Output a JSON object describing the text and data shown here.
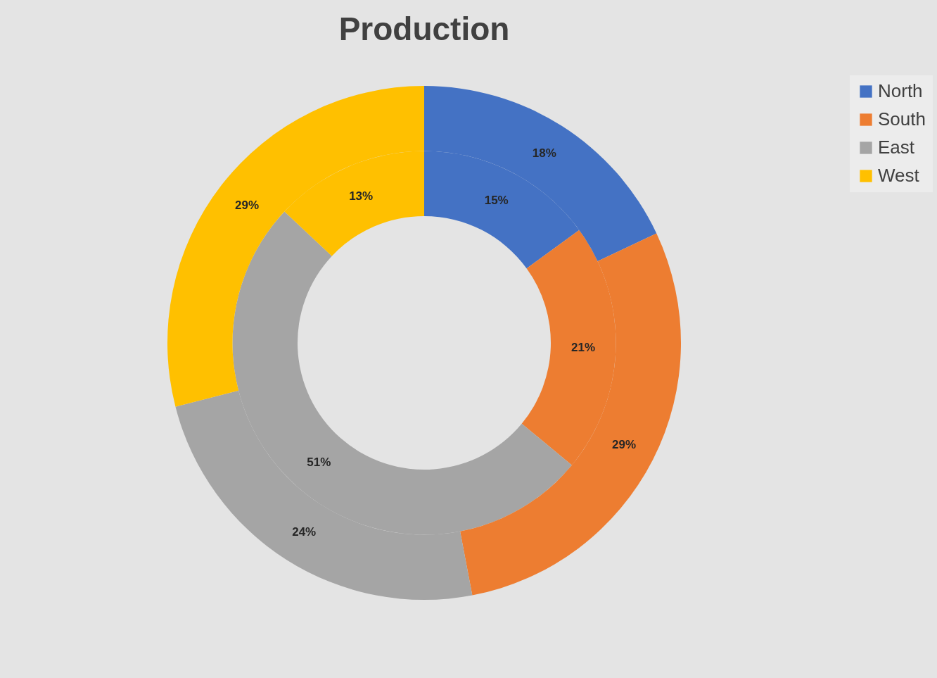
{
  "chart_data": {
    "type": "donut",
    "title": "Production",
    "categories": [
      "North",
      "South",
      "East",
      "West"
    ],
    "colors": [
      "#4472c4",
      "#ed7d31",
      "#a5a5a5",
      "#ffc000"
    ],
    "series": [
      {
        "values": [
          15,
          21,
          51,
          13
        ],
        "value_labels": [
          "15%",
          "21%",
          "51%",
          "13%"
        ]
      },
      {
        "values": [
          18,
          29,
          24,
          29
        ],
        "value_labels": [
          "18%",
          "29%",
          "24%",
          "29%"
        ]
      }
    ],
    "legend": "right"
  }
}
